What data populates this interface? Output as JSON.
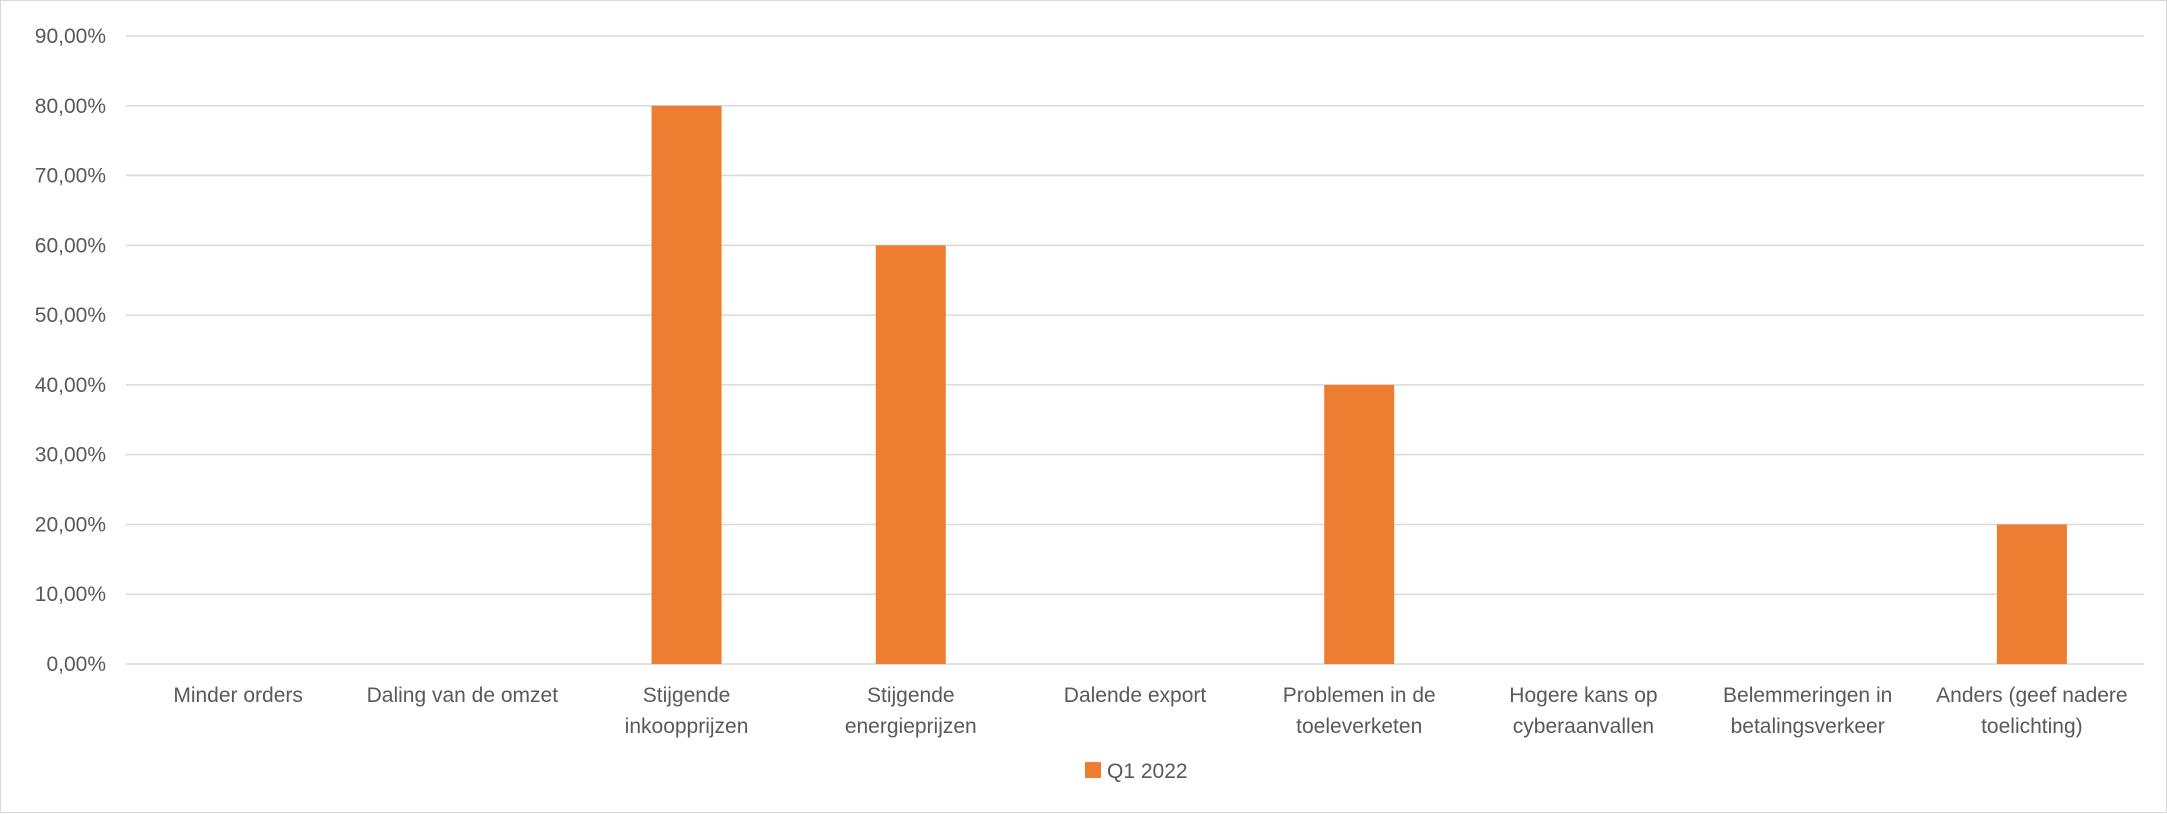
{
  "chart_data": {
    "type": "bar",
    "categories": [
      [
        "Minder orders"
      ],
      [
        "Daling van de omzet"
      ],
      [
        "Stijgende",
        "inkoopprijzen"
      ],
      [
        "Stijgende",
        "energieprijzen"
      ],
      [
        "Dalende export"
      ],
      [
        "Problemen in de",
        "toeleverketen"
      ],
      [
        "Hogere kans op",
        "cyberaanvallen"
      ],
      [
        "Belemmeringen in",
        "betalingsverkeer"
      ],
      [
        "Anders (geef nadere",
        "toelichting)"
      ]
    ],
    "series": [
      {
        "name": "Q1 2022",
        "color": "#ED7D31",
        "values": [
          0,
          0,
          0.8,
          0.6,
          0,
          0.4,
          0,
          0,
          0.2
        ]
      }
    ],
    "ylim": [
      0,
      0.9
    ],
    "yticks": [
      0,
      0.1,
      0.2,
      0.3,
      0.4,
      0.5,
      0.6,
      0.7,
      0.8,
      0.9
    ],
    "ytick_labels": [
      "0,00%",
      "10,00%",
      "20,00%",
      "30,00%",
      "40,00%",
      "50,00%",
      "60,00%",
      "70,00%",
      "80,00%",
      "90,00%"
    ],
    "grid": true,
    "gridline_color": "#d9d9d9",
    "legend_position": "bottom",
    "title": "",
    "xlabel": "",
    "ylabel": ""
  }
}
